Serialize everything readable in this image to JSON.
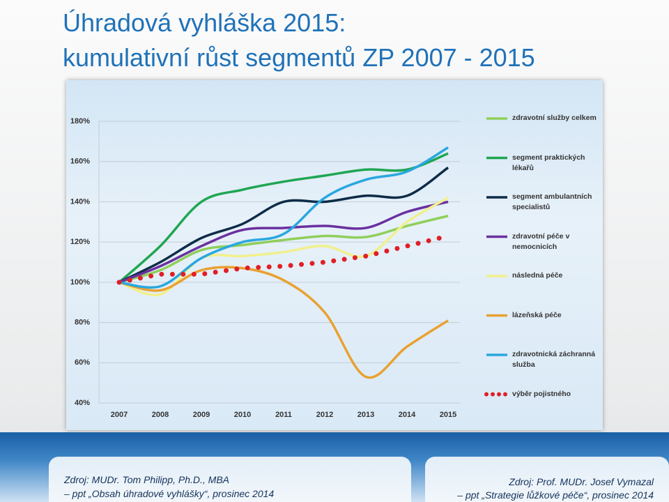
{
  "chart_data": {
    "type": "line",
    "title": "Úhradová vyhláška 2015:",
    "subtitle": "kumulativní růst segmentů ZP 2007 - 2015",
    "categories": [
      "2007",
      "2008",
      "2009",
      "2010",
      "2011",
      "2012",
      "2013",
      "2014",
      "2015"
    ],
    "ylim": [
      40,
      180
    ],
    "yticks": [
      {
        "value": 40,
        "label": "40%"
      },
      {
        "value": 60,
        "label": "60%"
      },
      {
        "value": 80,
        "label": "80%"
      },
      {
        "value": 100,
        "label": "100%"
      },
      {
        "value": 120,
        "label": "120%"
      },
      {
        "value": 140,
        "label": "140%"
      },
      {
        "value": 160,
        "label": "160%"
      },
      {
        "value": 180,
        "label": "180%"
      }
    ],
    "grid": true,
    "legend": "right",
    "series": [
      {
        "name": "zdravotní služby celkem",
        "color": "#8fcf5a",
        "values": [
          100,
          106,
          116,
          118.5,
          121,
          123,
          122.5,
          128,
          133
        ]
      },
      {
        "name": "segment praktických lékařů",
        "color": "#1fa652",
        "values": [
          100,
          118,
          140,
          146,
          150,
          153,
          156,
          156,
          164
        ]
      },
      {
        "name": "segment ambulantních specialistů",
        "color": "#0e2c48",
        "values": [
          100,
          110,
          122,
          129,
          140,
          140,
          143,
          143,
          157
        ]
      },
      {
        "name": "zdravotní péče v nemocnicích",
        "color": "#6a30a0",
        "values": [
          100,
          108,
          118,
          126,
          127,
          128,
          127,
          135,
          140
        ]
      },
      {
        "name": "následná péče",
        "color": "#f1f08c",
        "values": [
          100,
          94,
          112,
          113,
          115,
          118,
          113,
          130,
          142
        ]
      },
      {
        "name": "lázeňská péče",
        "color": "#e9a131",
        "values": [
          100,
          96,
          106,
          107,
          101,
          85,
          53,
          68,
          81
        ]
      },
      {
        "name": "zdravotnická záchranná služba",
        "color": "#2aa7df",
        "values": [
          100,
          98,
          112,
          120,
          124,
          142,
          151,
          155,
          167
        ]
      },
      {
        "name": "výběr pojistného",
        "color": "#e01f26",
        "dotted": true,
        "values": [
          100,
          104,
          104,
          107,
          108,
          110,
          113,
          118,
          123
        ]
      }
    ]
  },
  "sources": [
    {
      "line1": "Zdroj: MUDr. Tom Philipp, Ph.D., MBA",
      "line2": "– ppt „Obsah úhradové vyhlášky“, prosinec 2014"
    },
    {
      "line1": "Zdroj: Prof. MUDr. Josef Vymazal",
      "line2": "– ppt „Strategie lůžkové péče“, prosinec 2014"
    }
  ]
}
